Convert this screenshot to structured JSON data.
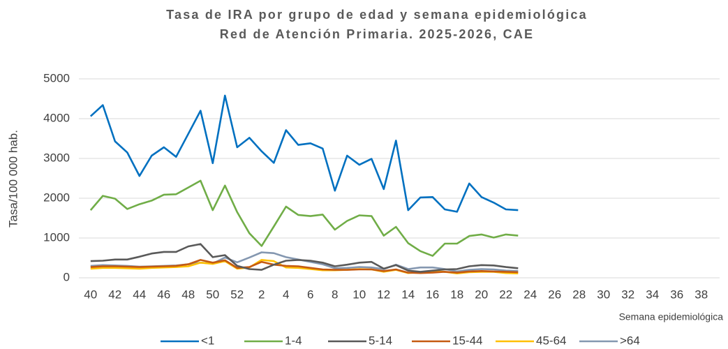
{
  "chart_data": {
    "type": "line",
    "title": "Tasa de IRA por grupo de edad y semana epidemiológica",
    "subtitle": "Red de Atención Primaria. 2025-2026, CAE",
    "y_label": "Tasa/100 000 hab.",
    "x_label": "Semana epidemiológica",
    "categories": [
      "40",
      null,
      "42",
      null,
      "44",
      null,
      "46",
      null,
      "48",
      null,
      "50",
      null,
      "52",
      null,
      "2",
      null,
      "4",
      null,
      "6",
      null,
      "8",
      null,
      "10",
      null,
      "12",
      null,
      "14",
      null,
      "16",
      null,
      "18",
      null,
      "20",
      null,
      "22",
      null,
      "24",
      null,
      "26",
      null,
      "28",
      null,
      "30",
      null,
      "32",
      null,
      "34",
      null,
      "36",
      null,
      "38",
      null
    ],
    "ylim": [
      0,
      5000
    ],
    "yticks": [
      0,
      1000,
      2000,
      3000,
      4000,
      5000
    ],
    "grid": true,
    "legend": "bottom",
    "series": [
      {
        "name": "<1",
        "color": "#0070c0",
        "values": [
          4060,
          4340,
          3430,
          3150,
          2560,
          3070,
          3280,
          3040,
          3620,
          4200,
          2880,
          4580,
          3280,
          3520,
          3180,
          2890,
          3710,
          3340,
          3380,
          3250,
          2190,
          3070,
          2840,
          2990,
          2230,
          3450,
          1700,
          2020,
          2030,
          1720,
          1660,
          2370,
          2030,
          1890,
          1720,
          1700,
          null,
          null,
          null,
          null,
          null,
          null,
          null,
          null,
          null,
          null,
          null,
          null,
          null,
          null,
          null,
          null
        ]
      },
      {
        "name": "1-4",
        "color": "#70ad47",
        "values": [
          1700,
          2060,
          1990,
          1730,
          1850,
          1940,
          2090,
          2100,
          2270,
          2440,
          1700,
          2320,
          1650,
          1120,
          800,
          1290,
          1790,
          1580,
          1550,
          1590,
          1210,
          1430,
          1570,
          1550,
          1060,
          1280,
          870,
          670,
          550,
          860,
          860,
          1050,
          1090,
          1010,
          1090,
          1060,
          null,
          null,
          null,
          null,
          null,
          null,
          null,
          null,
          null,
          null,
          null,
          null,
          null,
          null,
          null,
          null
        ]
      },
      {
        "name": "5-14",
        "color": "#595959",
        "values": [
          420,
          430,
          460,
          460,
          530,
          610,
          650,
          650,
          790,
          850,
          520,
          570,
          300,
          220,
          200,
          330,
          430,
          450,
          430,
          380,
          290,
          330,
          380,
          400,
          230,
          320,
          180,
          150,
          180,
          210,
          220,
          290,
          320,
          310,
          270,
          240,
          null,
          null,
          null,
          null,
          null,
          null,
          null,
          null,
          null,
          null,
          null,
          null,
          null,
          null,
          null,
          null
        ]
      },
      {
        "name": "15-44",
        "color": "#c55a11",
        "values": [
          270,
          290,
          290,
          280,
          270,
          280,
          290,
          300,
          340,
          450,
          380,
          440,
          250,
          270,
          400,
          330,
          300,
          290,
          250,
          210,
          200,
          200,
          210,
          210,
          170,
          210,
          130,
          120,
          130,
          150,
          130,
          160,
          170,
          160,
          150,
          140,
          null,
          null,
          null,
          null,
          null,
          null,
          null,
          null,
          null,
          null,
          null,
          null,
          null,
          null,
          null,
          null
        ]
      },
      {
        "name": "45-64",
        "color": "#ffc000",
        "values": [
          230,
          250,
          250,
          240,
          230,
          250,
          260,
          270,
          290,
          380,
          350,
          420,
          230,
          260,
          450,
          420,
          260,
          250,
          220,
          190,
          190,
          200,
          220,
          210,
          150,
          200,
          120,
          140,
          160,
          150,
          110,
          140,
          150,
          150,
          120,
          110,
          null,
          null,
          null,
          null,
          null,
          null,
          null,
          null,
          null,
          null,
          null,
          null,
          null,
          null,
          null,
          null
        ]
      },
      {
        "name": ">64",
        "color": "#8497b0",
        "values": [
          300,
          320,
          310,
          300,
          280,
          290,
          300,
          310,
          340,
          380,
          360,
          510,
          390,
          510,
          640,
          620,
          520,
          460,
          400,
          340,
          240,
          250,
          270,
          260,
          220,
          330,
          220,
          260,
          260,
          220,
          160,
          200,
          220,
          210,
          180,
          170,
          null,
          null,
          null,
          null,
          null,
          null,
          null,
          null,
          null,
          null,
          null,
          null,
          null,
          null,
          null,
          null
        ]
      }
    ]
  }
}
